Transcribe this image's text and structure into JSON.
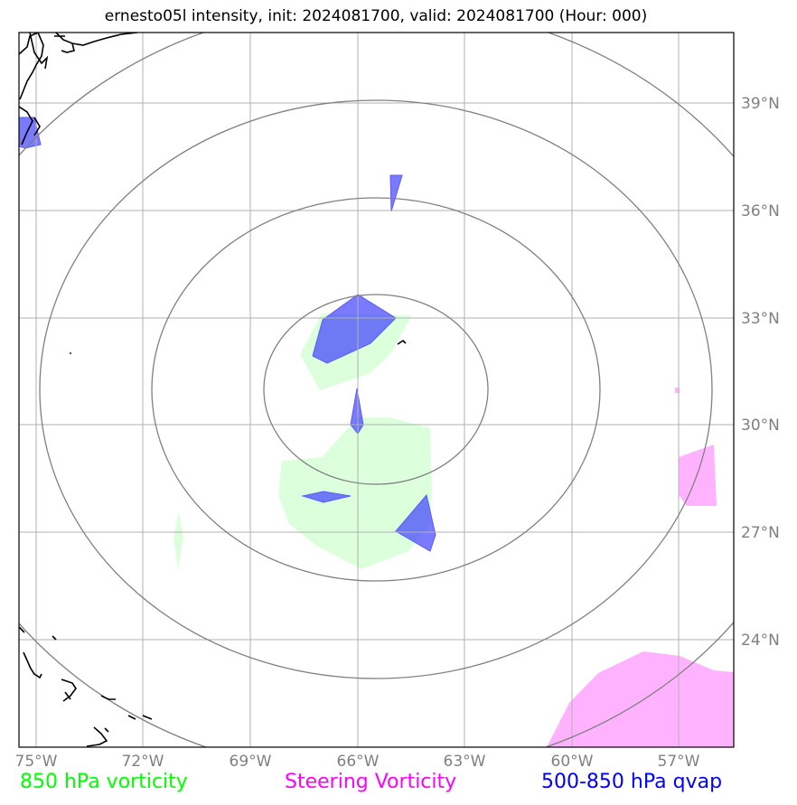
{
  "title": "ernesto05l intensity, init: 2024081700, valid: 2024081700 (Hour: 000)",
  "legend": {
    "vort850": {
      "label": "850 hPa vorticity",
      "color": "#00ff00"
    },
    "steering": {
      "label": "Steering Vorticity",
      "color": "#ff00ff"
    },
    "qvap": {
      "label": "500-850 hPa qvap",
      "color": "#0000ff"
    }
  },
  "axes": {
    "lon_ticks": [
      "75°W",
      "72°W",
      "69°W",
      "66°W",
      "63°W",
      "60°W",
      "57°W"
    ],
    "lat_ticks": [
      "39°N",
      "36°N",
      "33°N",
      "30°N",
      "27°N",
      "24°N"
    ]
  },
  "colors": {
    "vort850_fill": "#dcffdc",
    "steering_fill": "#ffb3ff",
    "qvap_fill": "#4040ff",
    "gridline": "#b0b0b0",
    "range_ring": "#808080",
    "coastline": "#000000"
  }
}
